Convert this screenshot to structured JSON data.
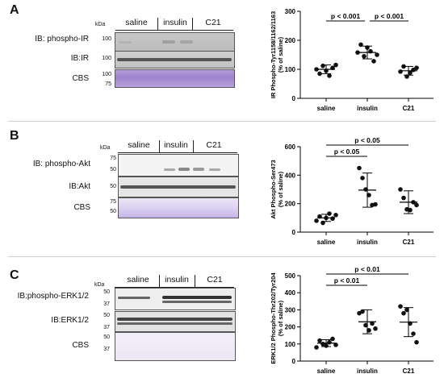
{
  "panels": [
    {
      "letter": "A",
      "blots": [
        {
          "label": "IB: phospho-IR",
          "markers": [
            "100"
          ]
        },
        {
          "label": "IB:IR",
          "markers": [
            "100"
          ]
        },
        {
          "label": "CBS",
          "markers": [
            "100",
            "75"
          ]
        }
      ],
      "kda_label": "kDa",
      "groups": [
        "saline",
        "insulin",
        "C21"
      ]
    },
    {
      "letter": "B",
      "blots": [
        {
          "label": "IB: phospho-Akt",
          "markers": [
            "75",
            "50"
          ]
        },
        {
          "label": "IB:Akt",
          "markers": [
            "50"
          ]
        },
        {
          "label": "CBS",
          "markers": [
            "75",
            "50"
          ]
        }
      ],
      "kda_label": "kDa",
      "groups": [
        "saline",
        "insulin",
        "C21"
      ]
    },
    {
      "letter": "C",
      "blots": [
        {
          "label": "IB:phospho-ERK1/2",
          "markers": [
            "50",
            "37"
          ]
        },
        {
          "label": "IB:ERK1/2",
          "markers": [
            "50",
            "37"
          ]
        },
        {
          "label": "CBS",
          "markers": [
            "50",
            "37"
          ]
        }
      ],
      "kda_label": "kDa",
      "groups": [
        "saline",
        "insulin",
        "C21"
      ]
    }
  ],
  "chart_data": [
    {
      "type": "scatter",
      "ylabel": "IR Phospho-Tyr1158/1162/1163",
      "ylabel2": "(% of saline)",
      "categories": [
        "saline",
        "insulin",
        "C21"
      ],
      "ylim": [
        0,
        300
      ],
      "yticks": [
        "0",
        "100",
        "200",
        "300"
      ],
      "points": [
        [
          100,
          85,
          112,
          95,
          78,
          105,
          115
        ],
        [
          158,
          185,
          145,
          175,
          162,
          128,
          150
        ],
        [
          92,
          110,
          75,
          88,
          98,
          105
        ]
      ],
      "means": [
        100,
        158,
        95
      ],
      "sds": [
        15,
        22,
        15
      ],
      "comparisons": [
        {
          "from": 0,
          "to": 1,
          "label": "p < 0.001",
          "level": 1
        },
        {
          "from": 1,
          "to": 2,
          "label": "p < 0.001",
          "level": 1
        }
      ]
    },
    {
      "type": "scatter",
      "ylabel": "Akt Phospho-Ser473",
      "ylabel2": "(% of saline)",
      "categories": [
        "saline",
        "insulin",
        "C21"
      ],
      "ylim": [
        0,
        600
      ],
      "yticks": [
        "0",
        "200",
        "400",
        "600"
      ],
      "points": [
        [
          80,
          110,
          65,
          100,
          130,
          95,
          120
        ],
        [
          450,
          380,
          300,
          260,
          190,
          195
        ],
        [
          300,
          240,
          160,
          155,
          210,
          190
        ]
      ],
      "means": [
        100,
        295,
        210
      ],
      "sds": [
        25,
        120,
        80
      ],
      "comparisons": [
        {
          "from": 0,
          "to": 1,
          "label": "p < 0.05",
          "level": 1
        },
        {
          "from": 0,
          "to": 2,
          "label": "p < 0.05",
          "level": 2
        }
      ]
    },
    {
      "type": "scatter",
      "ylabel": "ERK1/2 Phospho-Thr202/Tyr204",
      "ylabel2": "(% of saline)",
      "categories": [
        "saline",
        "insulin",
        "C21"
      ],
      "ylim": [
        0,
        500
      ],
      "yticks": [
        "0",
        "100",
        "200",
        "300",
        "400",
        "500"
      ],
      "points": [
        [
          80,
          120,
          100,
          90,
          110,
          130,
          95
        ],
        [
          280,
          290,
          210,
          180,
          220,
          190
        ],
        [
          320,
          280,
          300,
          220,
          160,
          110
        ]
      ],
      "means": [
        105,
        230,
        228
      ],
      "sds": [
        20,
        70,
        85
      ],
      "comparisons": [
        {
          "from": 0,
          "to": 1,
          "label": "p < 0.01",
          "level": 1
        },
        {
          "from": 0,
          "to": 2,
          "label": "p < 0.01",
          "level": 2
        }
      ]
    }
  ]
}
